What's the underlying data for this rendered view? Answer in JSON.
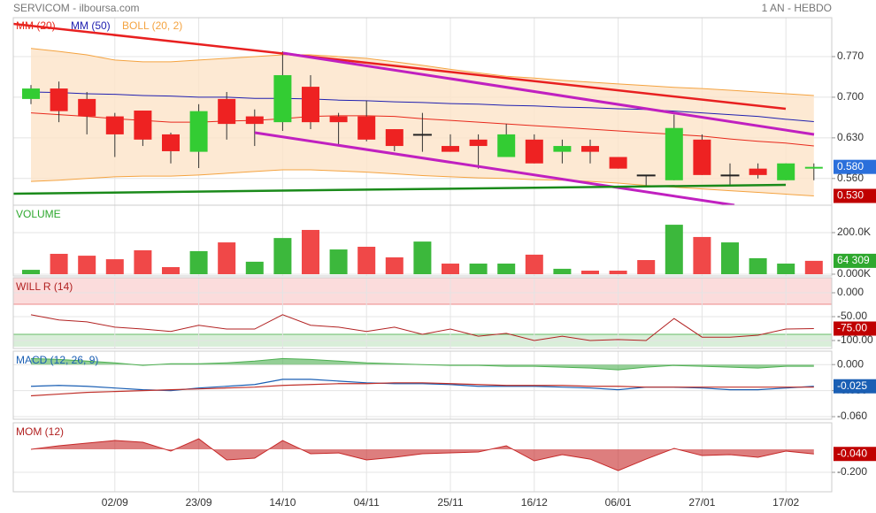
{
  "chart_data": [
    {
      "type": "candlestick",
      "title": "SERVICOM - ilboursa.com",
      "subtitle": "1 AN - HEBDO",
      "open": [
        0.697,
        0.715,
        0.697,
        0.667,
        0.677,
        0.636,
        0.606,
        0.697,
        0.667,
        0.657,
        0.718,
        0.667,
        0.667,
        0.645,
        0.636,
        0.616,
        0.627,
        0.597,
        0.627,
        0.606,
        0.616,
        0.597,
        0.566,
        0.557,
        0.627,
        0.566,
        0.577,
        0.557,
        0.577
      ],
      "high": [
        0.721,
        0.727,
        0.709,
        0.673,
        0.677,
        0.639,
        0.688,
        0.709,
        0.679,
        0.779,
        0.738,
        0.673,
        0.694,
        0.645,
        0.673,
        0.636,
        0.636,
        0.654,
        0.636,
        0.627,
        0.627,
        0.597,
        0.566,
        0.67,
        0.636,
        0.586,
        0.586,
        0.586,
        0.586
      ],
      "low": [
        0.688,
        0.657,
        0.636,
        0.597,
        0.616,
        0.586,
        0.578,
        0.627,
        0.616,
        0.642,
        0.645,
        0.616,
        0.624,
        0.607,
        0.606,
        0.606,
        0.577,
        0.597,
        0.586,
        0.586,
        0.586,
        0.577,
        0.548,
        0.557,
        0.566,
        0.548,
        0.56,
        0.557,
        0.557
      ],
      "close": [
        0.715,
        0.676,
        0.667,
        0.636,
        0.627,
        0.607,
        0.676,
        0.654,
        0.654,
        0.738,
        0.657,
        0.657,
        0.627,
        0.616,
        0.636,
        0.606,
        0.616,
        0.636,
        0.586,
        0.616,
        0.606,
        0.577,
        0.566,
        0.647,
        0.566,
        0.566,
        0.566,
        0.586,
        0.58
      ],
      "up_color": "#33cc33",
      "down_color": "#ee2222",
      "series": [
        {
          "name": "MM (20)",
          "color": "#e8291c",
          "values": [
            0.673,
            0.67,
            0.667,
            0.663,
            0.66,
            0.657,
            0.657,
            0.659,
            0.66,
            0.663,
            0.667,
            0.668,
            0.668,
            0.667,
            0.663,
            0.66,
            0.657,
            0.654,
            0.651,
            0.648,
            0.645,
            0.642,
            0.639,
            0.636,
            0.633,
            0.628,
            0.624,
            0.621,
            0.616
          ]
        },
        {
          "name": "MM (50)",
          "color": "#2020b0",
          "values": [
            0.709,
            0.708,
            0.706,
            0.705,
            0.703,
            0.702,
            0.7,
            0.7,
            0.698,
            0.698,
            0.697,
            0.695,
            0.694,
            0.692,
            0.691,
            0.689,
            0.688,
            0.686,
            0.685,
            0.683,
            0.682,
            0.68,
            0.679,
            0.676,
            0.673,
            0.67,
            0.667,
            0.662,
            0.658
          ]
        }
      ],
      "bollinger": {
        "name": "BOLL (20, 2)",
        "color": "#f4a340",
        "upper": [
          0.784,
          0.779,
          0.773,
          0.764,
          0.761,
          0.761,
          0.764,
          0.767,
          0.77,
          0.773,
          0.773,
          0.77,
          0.767,
          0.761,
          0.755,
          0.748,
          0.742,
          0.736,
          0.733,
          0.729,
          0.726,
          0.723,
          0.72,
          0.717,
          0.715,
          0.712,
          0.709,
          0.706,
          0.703
        ],
        "lower": [
          0.555,
          0.557,
          0.56,
          0.563,
          0.564,
          0.564,
          0.566,
          0.569,
          0.572,
          0.575,
          0.575,
          0.573,
          0.571,
          0.568,
          0.565,
          0.563,
          0.561,
          0.56,
          0.558,
          0.557,
          0.555,
          0.552,
          0.548,
          0.545,
          0.542,
          0.539,
          0.536,
          0.533,
          0.53
        ]
      },
      "ylim": [
        0.514,
        0.837
      ],
      "yticks": [
        {
          "value": 0.56,
          "label": "0.560"
        },
        {
          "value": 0.63,
          "label": "0.630"
        },
        {
          "value": 0.7,
          "label": "0.700"
        },
        {
          "value": 0.77,
          "label": "0.770"
        }
      ],
      "markers": [
        {
          "value": 0.58,
          "label": "0.580",
          "color": "#2a6fdb"
        },
        {
          "value": 0.53,
          "label": "0.530",
          "color": "#c00000"
        }
      ]
    },
    {
      "type": "bar",
      "title": "VOLUME",
      "title_color": "#2ea82e",
      "values": [
        21000,
        98000,
        89000,
        72000,
        115000,
        34000,
        111000,
        153000,
        60000,
        174000,
        213000,
        119000,
        132000,
        81000,
        157000,
        51000,
        51000,
        51000,
        94000,
        26000,
        17000,
        17000,
        68000,
        238000,
        179000,
        153000,
        77000,
        51000,
        64309
      ],
      "colors": [
        "#3cb83c",
        "#f04848",
        "#f04848",
        "#f04848",
        "#f04848",
        "#f04848",
        "#3cb83c",
        "#f04848",
        "#3cb83c",
        "#3cb83c",
        "#f04848",
        "#3cb83c",
        "#f04848",
        "#f04848",
        "#3cb83c",
        "#f04848",
        "#3cb83c",
        "#3cb83c",
        "#f04848",
        "#3cb83c",
        "#f04848",
        "#f04848",
        "#f04848",
        "#3cb83c",
        "#f04848",
        "#3cb83c",
        "#3cb83c",
        "#3cb83c",
        "#f04848"
      ],
      "ylim": [
        -8500,
        332000
      ],
      "yticks": [
        {
          "value": 0,
          "label": "0.000K"
        },
        {
          "value": 200000,
          "label": "200.0K"
        }
      ],
      "markers": [
        {
          "value": 64309,
          "label": "64 309",
          "color": "#2ea82e"
        }
      ]
    },
    {
      "type": "line",
      "title": "WILL R (14)",
      "title_color": "#b22222",
      "series": [
        {
          "color": "#b22222",
          "values": [
            -46,
            -57,
            -61,
            -72,
            -76,
            -81,
            -68,
            -76,
            -76,
            -46,
            -68,
            -72,
            -81,
            -72,
            -87,
            -76,
            -91,
            -85,
            -100,
            -91,
            -100,
            -98,
            -100,
            -54,
            -93,
            -93,
            -89,
            -76,
            -75
          ]
        }
      ],
      "ylim": [
        -116.7,
        31.5
      ],
      "yticks": [
        {
          "value": 0,
          "label": "0.000"
        },
        {
          "value": -50,
          "label": "-50.00"
        },
        {
          "value": -100,
          "label": "-100.00"
        }
      ],
      "markers": [
        {
          "value": -75,
          "label": "-75.00",
          "color": "#c00000"
        }
      ]
    },
    {
      "type": "macd",
      "title": "MACD (12, 26, 9)",
      "title_color": "#1a5fb4",
      "histogram": {
        "color": "#4caf50",
        "values": [
          0.007,
          0.006,
          0.004,
          0.002,
          -0.001,
          0.001,
          0.001,
          0.002,
          0.004,
          0.007,
          0.006,
          0.004,
          0.002,
          0.001,
          0,
          -0.001,
          -0.001,
          -0.002,
          -0.002,
          -0.003,
          -0.004,
          -0.006,
          -0.003,
          -0.001,
          -0.002,
          -0.003,
          -0.004,
          -0.002,
          -0.002
        ]
      },
      "series": [
        {
          "color": "#1a5fb4",
          "values": [
            -0.025,
            -0.024,
            -0.025,
            -0.027,
            -0.029,
            -0.03,
            -0.027,
            -0.025,
            -0.023,
            -0.017,
            -0.017,
            -0.019,
            -0.021,
            -0.022,
            -0.022,
            -0.023,
            -0.025,
            -0.025,
            -0.025,
            -0.026,
            -0.027,
            -0.029,
            -0.026,
            -0.026,
            -0.027,
            -0.029,
            -0.029,
            -0.027,
            -0.025
          ]
        },
        {
          "color": "#c0302a",
          "values": [
            -0.036,
            -0.034,
            -0.032,
            -0.031,
            -0.03,
            -0.029,
            -0.028,
            -0.027,
            -0.026,
            -0.024,
            -0.023,
            -0.022,
            -0.022,
            -0.021,
            -0.021,
            -0.022,
            -0.023,
            -0.024,
            -0.024,
            -0.024,
            -0.025,
            -0.025,
            -0.026,
            -0.026,
            -0.026,
            -0.026,
            -0.026,
            -0.026,
            -0.026
          ]
        }
      ],
      "ylim": [
        -0.063,
        0.0155
      ],
      "yticks": [
        {
          "value": 0,
          "label": "0.000"
        },
        {
          "value": -0.03,
          "label": "-0.030"
        },
        {
          "value": -0.06,
          "label": "-0.060"
        }
      ],
      "markers": [
        {
          "value": -0.025,
          "label": "-0.025",
          "color": "#1a5fb4"
        }
      ]
    },
    {
      "type": "area",
      "title": "MOM (12)",
      "title_color": "#b22222",
      "color": "#c62828",
      "values": [
        0,
        0.031,
        0.054,
        0.077,
        0.062,
        -0.015,
        0.092,
        -0.092,
        -0.077,
        0.077,
        -0.038,
        -0.031,
        -0.092,
        -0.069,
        -0.038,
        -0.031,
        -0.023,
        0.031,
        -0.1,
        -0.046,
        -0.085,
        -0.185,
        -0.085,
        0.008,
        -0.054,
        -0.046,
        -0.069,
        -0.015,
        -0.04
      ],
      "ylim": [
        -0.369,
        0.231
      ],
      "yticks": [
        {
          "value": -0.2,
          "label": "-0.200"
        }
      ],
      "markers": [
        {
          "value": -0.04,
          "label": "-0.040",
          "color": "#c00000"
        }
      ],
      "categories": [
        null,
        null,
        null,
        "02/09",
        null,
        null,
        "23/09",
        null,
        null,
        "14/10",
        null,
        null,
        "04/11",
        null,
        null,
        "25/11",
        null,
        null,
        "16/12",
        null,
        null,
        "06/01",
        null,
        null,
        "27/01",
        null,
        null,
        "17/02",
        null
      ]
    }
  ]
}
